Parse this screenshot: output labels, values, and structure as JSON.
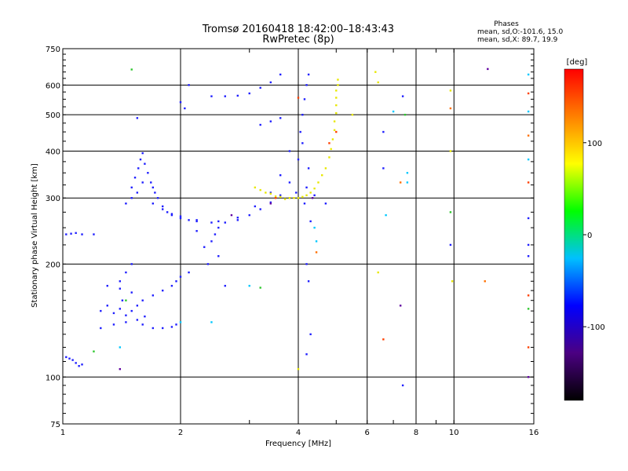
{
  "chart_data": {
    "type": "scatter",
    "title": "Tromsø 20160418 18:42:00–18:43:43",
    "subtitle": "RwPretec (8p)",
    "xlabel": "Frequency [MHz]",
    "ylabel": "Stationary phase Virtual Height [km]",
    "x_scale": "log",
    "y_scale": "log",
    "xlim": [
      1,
      16
    ],
    "ylim": [
      75,
      750
    ],
    "x_ticks": [
      1,
      2,
      4,
      6,
      8,
      10,
      16
    ],
    "y_ticks": [
      75,
      100,
      200,
      300,
      400,
      500,
      600,
      750
    ],
    "grid": true,
    "stats_header": "Phases",
    "stats_o": "mean, sd,O:-101.6, 15.0",
    "stats_x": "mean, sd,X:  89.7, 19.9",
    "colorbar": {
      "label": "[deg]",
      "min": -180,
      "max": 180,
      "ticks": [
        100,
        0,
        -100
      ],
      "colors": [
        "#000000",
        "#4b0082",
        "#0000ff",
        "#00c0ff",
        "#00ff00",
        "#ffff00",
        "#ff8000",
        "#ff0000"
      ]
    },
    "series": [
      {
        "color": "#2020ff",
        "points": [
          [
            1.02,
            240
          ],
          [
            1.05,
            241
          ],
          [
            1.08,
            242
          ],
          [
            1.12,
            240
          ],
          [
            1.2,
            240
          ],
          [
            1.02,
            113
          ],
          [
            1.04,
            112
          ],
          [
            1.06,
            111
          ],
          [
            1.08,
            109
          ],
          [
            1.1,
            107
          ],
          [
            1.12,
            108
          ],
          [
            1.5,
            320
          ],
          [
            1.53,
            340
          ],
          [
            1.56,
            360
          ],
          [
            1.58,
            380
          ],
          [
            1.6,
            395
          ],
          [
            1.62,
            370
          ],
          [
            1.65,
            350
          ],
          [
            1.68,
            330
          ],
          [
            1.7,
            320
          ],
          [
            1.72,
            310
          ],
          [
            1.5,
            300
          ],
          [
            1.55,
            310
          ],
          [
            1.6,
            330
          ],
          [
            1.45,
            290
          ],
          [
            1.75,
            300
          ],
          [
            1.8,
            285
          ],
          [
            1.85,
            275
          ],
          [
            1.9,
            270
          ],
          [
            2.0,
            265
          ],
          [
            2.1,
            262
          ],
          [
            2.2,
            260
          ],
          [
            2.4,
            258
          ],
          [
            2.6,
            258
          ],
          [
            2.8,
            262
          ],
          [
            3.0,
            270
          ],
          [
            3.2,
            280
          ],
          [
            3.4,
            292
          ],
          [
            3.6,
            305
          ],
          [
            3.8,
            330
          ],
          [
            4.0,
            380
          ],
          [
            4.1,
            420
          ],
          [
            1.7,
            290
          ],
          [
            1.8,
            280
          ],
          [
            1.9,
            272
          ],
          [
            2.0,
            268
          ],
          [
            2.2,
            262
          ],
          [
            2.5,
            260
          ],
          [
            2.8,
            266
          ],
          [
            3.1,
            285
          ],
          [
            3.4,
            310
          ],
          [
            3.6,
            345
          ],
          [
            3.8,
            400
          ],
          [
            4.05,
            450
          ],
          [
            4.1,
            500
          ],
          [
            4.15,
            550
          ],
          [
            4.2,
            600
          ],
          [
            4.25,
            640
          ],
          [
            2.4,
            560
          ],
          [
            2.6,
            560
          ],
          [
            2.8,
            562
          ],
          [
            3.0,
            570
          ],
          [
            3.2,
            590
          ],
          [
            3.4,
            610
          ],
          [
            3.6,
            640
          ],
          [
            3.2,
            470
          ],
          [
            3.4,
            480
          ],
          [
            3.6,
            490
          ],
          [
            2.0,
            540
          ],
          [
            2.05,
            520
          ],
          [
            2.1,
            600
          ],
          [
            1.55,
            490
          ],
          [
            2.2,
            245
          ],
          [
            2.3,
            222
          ],
          [
            2.35,
            200
          ],
          [
            2.1,
            190
          ],
          [
            2.0,
            185
          ],
          [
            1.3,
            175
          ],
          [
            1.4,
            172
          ],
          [
            1.5,
            168
          ],
          [
            1.6,
            160
          ],
          [
            1.7,
            165
          ],
          [
            1.8,
            170
          ],
          [
            1.9,
            175
          ],
          [
            1.95,
            180
          ],
          [
            1.25,
            150
          ],
          [
            1.3,
            155
          ],
          [
            1.35,
            148
          ],
          [
            1.4,
            152
          ],
          [
            1.45,
            146
          ],
          [
            1.5,
            150
          ],
          [
            1.55,
            155
          ],
          [
            1.25,
            135
          ],
          [
            1.35,
            138
          ],
          [
            1.45,
            140
          ],
          [
            1.55,
            142
          ],
          [
            1.6,
            138
          ],
          [
            1.7,
            135
          ],
          [
            1.8,
            135
          ],
          [
            1.9,
            136
          ],
          [
            1.95,
            138
          ],
          [
            1.4,
            180
          ],
          [
            1.45,
            190
          ],
          [
            1.5,
            200
          ],
          [
            1.42,
            160
          ],
          [
            1.62,
            145
          ],
          [
            2.5,
            250
          ],
          [
            2.45,
            240
          ],
          [
            2.4,
            230
          ],
          [
            4.15,
            290
          ],
          [
            4.2,
            320
          ],
          [
            4.25,
            360
          ],
          [
            3.8,
            300
          ],
          [
            3.95,
            310
          ],
          [
            4.3,
            260
          ],
          [
            4.2,
            200
          ],
          [
            4.25,
            180
          ],
          [
            4.3,
            130
          ],
          [
            4.2,
            115
          ],
          [
            4.4,
            305
          ],
          [
            4.7,
            290
          ],
          [
            6.6,
            450
          ],
          [
            6.6,
            360
          ],
          [
            7.4,
            560
          ],
          [
            7.4,
            95
          ],
          [
            9.8,
            225
          ],
          [
            15.5,
            225
          ],
          [
            15.5,
            210
          ],
          [
            15.5,
            265
          ],
          [
            2.6,
            175
          ],
          [
            2.5,
            210
          ]
        ]
      },
      {
        "color": "#e8e800",
        "points": [
          [
            3.2,
            315
          ],
          [
            3.4,
            308
          ],
          [
            3.6,
            302
          ],
          [
            3.8,
            300
          ],
          [
            4.0,
            300
          ],
          [
            4.2,
            305
          ],
          [
            4.4,
            318
          ],
          [
            4.6,
            345
          ],
          [
            4.8,
            385
          ],
          [
            4.9,
            430
          ],
          [
            4.95,
            480
          ],
          [
            5.0,
            530
          ],
          [
            5.0,
            580
          ],
          [
            5.05,
            620
          ],
          [
            3.1,
            320
          ],
          [
            3.3,
            310
          ],
          [
            3.5,
            303
          ],
          [
            3.7,
            298
          ],
          [
            3.9,
            300
          ],
          [
            4.1,
            302
          ],
          [
            4.3,
            310
          ],
          [
            4.5,
            330
          ],
          [
            4.7,
            360
          ],
          [
            4.85,
            405
          ],
          [
            4.95,
            455
          ],
          [
            5.0,
            505
          ],
          [
            5.0,
            555
          ],
          [
            5.05,
            600
          ],
          [
            6.3,
            650
          ],
          [
            6.4,
            610
          ],
          [
            9.8,
            400
          ],
          [
            9.8,
            580
          ],
          [
            4.0,
            105
          ],
          [
            9.9,
            180
          ],
          [
            6.4,
            190
          ],
          [
            5.5,
            500
          ]
        ]
      },
      {
        "color": "#ff4000",
        "points": [
          [
            4.0,
            555
          ],
          [
            4.8,
            420
          ],
          [
            5.0,
            450
          ],
          [
            6.6,
            126
          ],
          [
            15.5,
            570
          ],
          [
            15.5,
            330
          ],
          [
            15.5,
            165
          ],
          [
            15.5,
            120
          ],
          [
            3.5,
            300
          ]
        ]
      },
      {
        "color": "#00c8ff",
        "points": [
          [
            3.0,
            175
          ],
          [
            2.4,
            140
          ],
          [
            2.0,
            140
          ],
          [
            1.4,
            120
          ],
          [
            7.0,
            510
          ],
          [
            15.5,
            640
          ],
          [
            15.5,
            510
          ],
          [
            15.5,
            380
          ],
          [
            7.6,
            330
          ],
          [
            7.6,
            350
          ],
          [
            4.4,
            250
          ],
          [
            4.45,
            230
          ],
          [
            6.7,
            270
          ]
        ]
      },
      {
        "color": "#30c830",
        "points": [
          [
            1.5,
            660
          ],
          [
            1.45,
            160
          ],
          [
            3.2,
            173
          ],
          [
            7.5,
            500
          ],
          [
            9.8,
            275
          ],
          [
            15.5,
            152
          ],
          [
            1.2,
            117
          ]
        ]
      },
      {
        "color": "#ff7000",
        "points": [
          [
            12.0,
            180
          ],
          [
            4.45,
            215
          ],
          [
            9.8,
            520
          ],
          [
            7.3,
            330
          ],
          [
            15.5,
            440
          ]
        ]
      },
      {
        "color": "#6000a0",
        "points": [
          [
            1.4,
            105
          ],
          [
            3.4,
            290
          ],
          [
            2.7,
            270
          ],
          [
            4.35,
            300
          ],
          [
            15.5,
            100
          ],
          [
            12.2,
            662
          ],
          [
            7.3,
            155
          ]
        ]
      }
    ]
  }
}
